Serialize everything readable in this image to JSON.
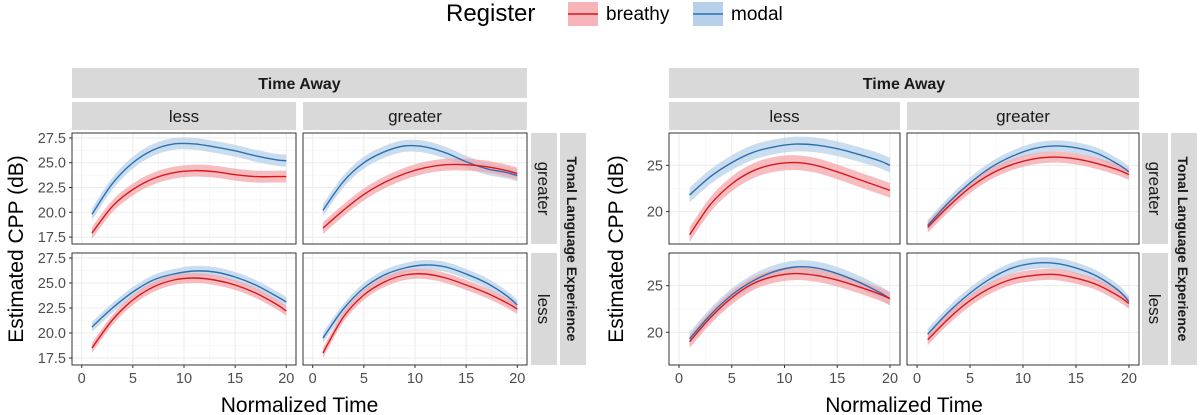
{
  "legend": {
    "title": "Register",
    "items": [
      {
        "label": "breathy",
        "line": "#d7191c",
        "ribbon": "#f4a6ab"
      },
      {
        "label": "modal",
        "line": "#2c6fb2",
        "ribbon": "#b8d1ea"
      }
    ]
  },
  "chart_data": [
    {
      "type": "line",
      "facet_col_title": "Time Away",
      "facet_row_title": "Tonal Language Experience",
      "col_labels": [
        "less",
        "greater"
      ],
      "row_labels": [
        "greater",
        "less"
      ],
      "xlabel": "Normalized Time",
      "ylabel": "Estimated CPP (dB)",
      "xlim": [
        1,
        20
      ],
      "xticks": [
        0,
        5,
        10,
        15,
        20
      ],
      "ylim": [
        16.8,
        28.0
      ],
      "yticks": [
        17.5,
        20.0,
        22.5,
        25.0,
        27.5
      ],
      "ytick_labels": [
        "17.5",
        "20.0",
        "22.5",
        "25.0",
        "27.5"
      ],
      "grid": true,
      "panels": [
        {
          "row": "greater",
          "col": "less",
          "x": [
            1,
            3,
            5,
            7,
            9,
            11,
            13,
            15,
            17,
            19,
            20
          ],
          "series": [
            {
              "name": "breathy",
              "values": [
                17.9,
                20.6,
                22.3,
                23.4,
                24.0,
                24.2,
                24.1,
                23.8,
                23.6,
                23.6,
                23.6
              ],
              "band": 0.6
            },
            {
              "name": "modal",
              "values": [
                19.8,
                22.9,
                25.0,
                26.3,
                26.9,
                26.9,
                26.6,
                26.2,
                25.7,
                25.3,
                25.2
              ],
              "band": 0.6
            }
          ]
        },
        {
          "row": "greater",
          "col": "greater",
          "x": [
            1,
            3,
            5,
            7,
            9,
            11,
            13,
            15,
            17,
            19,
            20
          ],
          "series": [
            {
              "name": "breathy",
              "values": [
                18.4,
                20.2,
                21.8,
                23.0,
                23.9,
                24.5,
                24.8,
                24.8,
                24.6,
                24.2,
                23.9
              ],
              "band": 0.6
            },
            {
              "name": "modal",
              "values": [
                20.2,
                23.1,
                25.0,
                26.1,
                26.7,
                26.6,
                26.0,
                25.1,
                24.4,
                24.0,
                23.7
              ],
              "band": 0.6
            }
          ]
        },
        {
          "row": "less",
          "col": "less",
          "x": [
            1,
            3,
            5,
            7,
            9,
            11,
            13,
            15,
            17,
            19,
            20
          ],
          "series": [
            {
              "name": "breathy",
              "values": [
                18.5,
                21.3,
                23.3,
                24.6,
                25.3,
                25.5,
                25.3,
                24.8,
                24.0,
                22.9,
                22.2
              ],
              "band": 0.5
            },
            {
              "name": "modal",
              "values": [
                20.6,
                22.5,
                24.1,
                25.3,
                25.9,
                26.2,
                26.1,
                25.6,
                24.8,
                23.7,
                23.1
              ],
              "band": 0.5
            }
          ]
        },
        {
          "row": "less",
          "col": "greater",
          "x": [
            1,
            3,
            5,
            7,
            9,
            11,
            13,
            15,
            17,
            19,
            20
          ],
          "series": [
            {
              "name": "breathy",
              "values": [
                18.0,
                21.6,
                23.8,
                25.1,
                25.8,
                25.9,
                25.5,
                24.8,
                24.0,
                23.0,
                22.4
              ],
              "band": 0.5
            },
            {
              "name": "modal",
              "values": [
                19.5,
                22.4,
                24.5,
                25.8,
                26.5,
                26.8,
                26.6,
                25.9,
                25.0,
                23.7,
                22.8
              ],
              "band": 0.5
            }
          ]
        }
      ]
    },
    {
      "type": "line",
      "facet_col_title": "Time Away",
      "facet_row_title": "Tonal Language Experience",
      "col_labels": [
        "less",
        "greater"
      ],
      "row_labels": [
        "greater",
        "less"
      ],
      "xlabel": "Normalized Time",
      "ylabel": "Estimated CPP (dB)",
      "xlim": [
        1,
        20
      ],
      "xticks": [
        0,
        5,
        10,
        15,
        20
      ],
      "ylim": [
        16.5,
        28.5
      ],
      "yticks": [
        20,
        25
      ],
      "ytick_labels": [
        "20",
        "25"
      ],
      "grid": true,
      "panels": [
        {
          "row": "greater",
          "col": "less",
          "x": [
            1,
            3,
            5,
            7,
            9,
            11,
            13,
            15,
            17,
            19,
            20
          ],
          "series": [
            {
              "name": "breathy",
              "values": [
                17.5,
                20.8,
                23.0,
                24.4,
                25.1,
                25.3,
                25.0,
                24.3,
                23.5,
                22.7,
                22.3
              ],
              "band": 0.8
            },
            {
              "name": "modal",
              "values": [
                21.8,
                23.8,
                25.3,
                26.4,
                27.0,
                27.3,
                27.2,
                26.8,
                26.2,
                25.5,
                25.0
              ],
              "band": 0.8
            }
          ]
        },
        {
          "row": "greater",
          "col": "greater",
          "x": [
            1,
            3,
            5,
            7,
            9,
            11,
            13,
            15,
            17,
            19,
            20
          ],
          "series": [
            {
              "name": "breathy",
              "values": [
                18.3,
                20.6,
                22.6,
                24.1,
                25.1,
                25.7,
                25.9,
                25.7,
                25.2,
                24.5,
                24.0
              ],
              "band": 0.6
            },
            {
              "name": "modal",
              "values": [
                18.5,
                21.0,
                23.1,
                24.8,
                26.0,
                26.8,
                27.1,
                26.9,
                26.3,
                25.1,
                24.3
              ],
              "band": 0.6
            }
          ]
        },
        {
          "row": "less",
          "col": "less",
          "x": [
            1,
            3,
            5,
            7,
            9,
            11,
            13,
            15,
            17,
            19,
            20
          ],
          "series": [
            {
              "name": "breathy",
              "values": [
                19.0,
                21.6,
                23.7,
                25.2,
                26.0,
                26.3,
                26.1,
                25.6,
                24.9,
                24.1,
                23.6
              ],
              "band": 0.7
            },
            {
              "name": "modal",
              "values": [
                19.3,
                21.9,
                24.0,
                25.5,
                26.5,
                27.0,
                26.9,
                26.3,
                25.4,
                24.3,
                23.6
              ],
              "band": 0.7
            }
          ]
        },
        {
          "row": "less",
          "col": "greater",
          "x": [
            1,
            3,
            5,
            7,
            9,
            11,
            13,
            15,
            17,
            19,
            20
          ],
          "series": [
            {
              "name": "breathy",
              "values": [
                19.2,
                21.5,
                23.4,
                24.8,
                25.7,
                26.1,
                26.2,
                25.8,
                25.1,
                23.9,
                23.1
              ],
              "band": 0.6
            },
            {
              "name": "modal",
              "values": [
                19.8,
                22.2,
                24.2,
                25.8,
                26.9,
                27.4,
                27.4,
                26.9,
                26.0,
                24.5,
                23.3
              ],
              "band": 0.6
            }
          ]
        }
      ]
    }
  ]
}
